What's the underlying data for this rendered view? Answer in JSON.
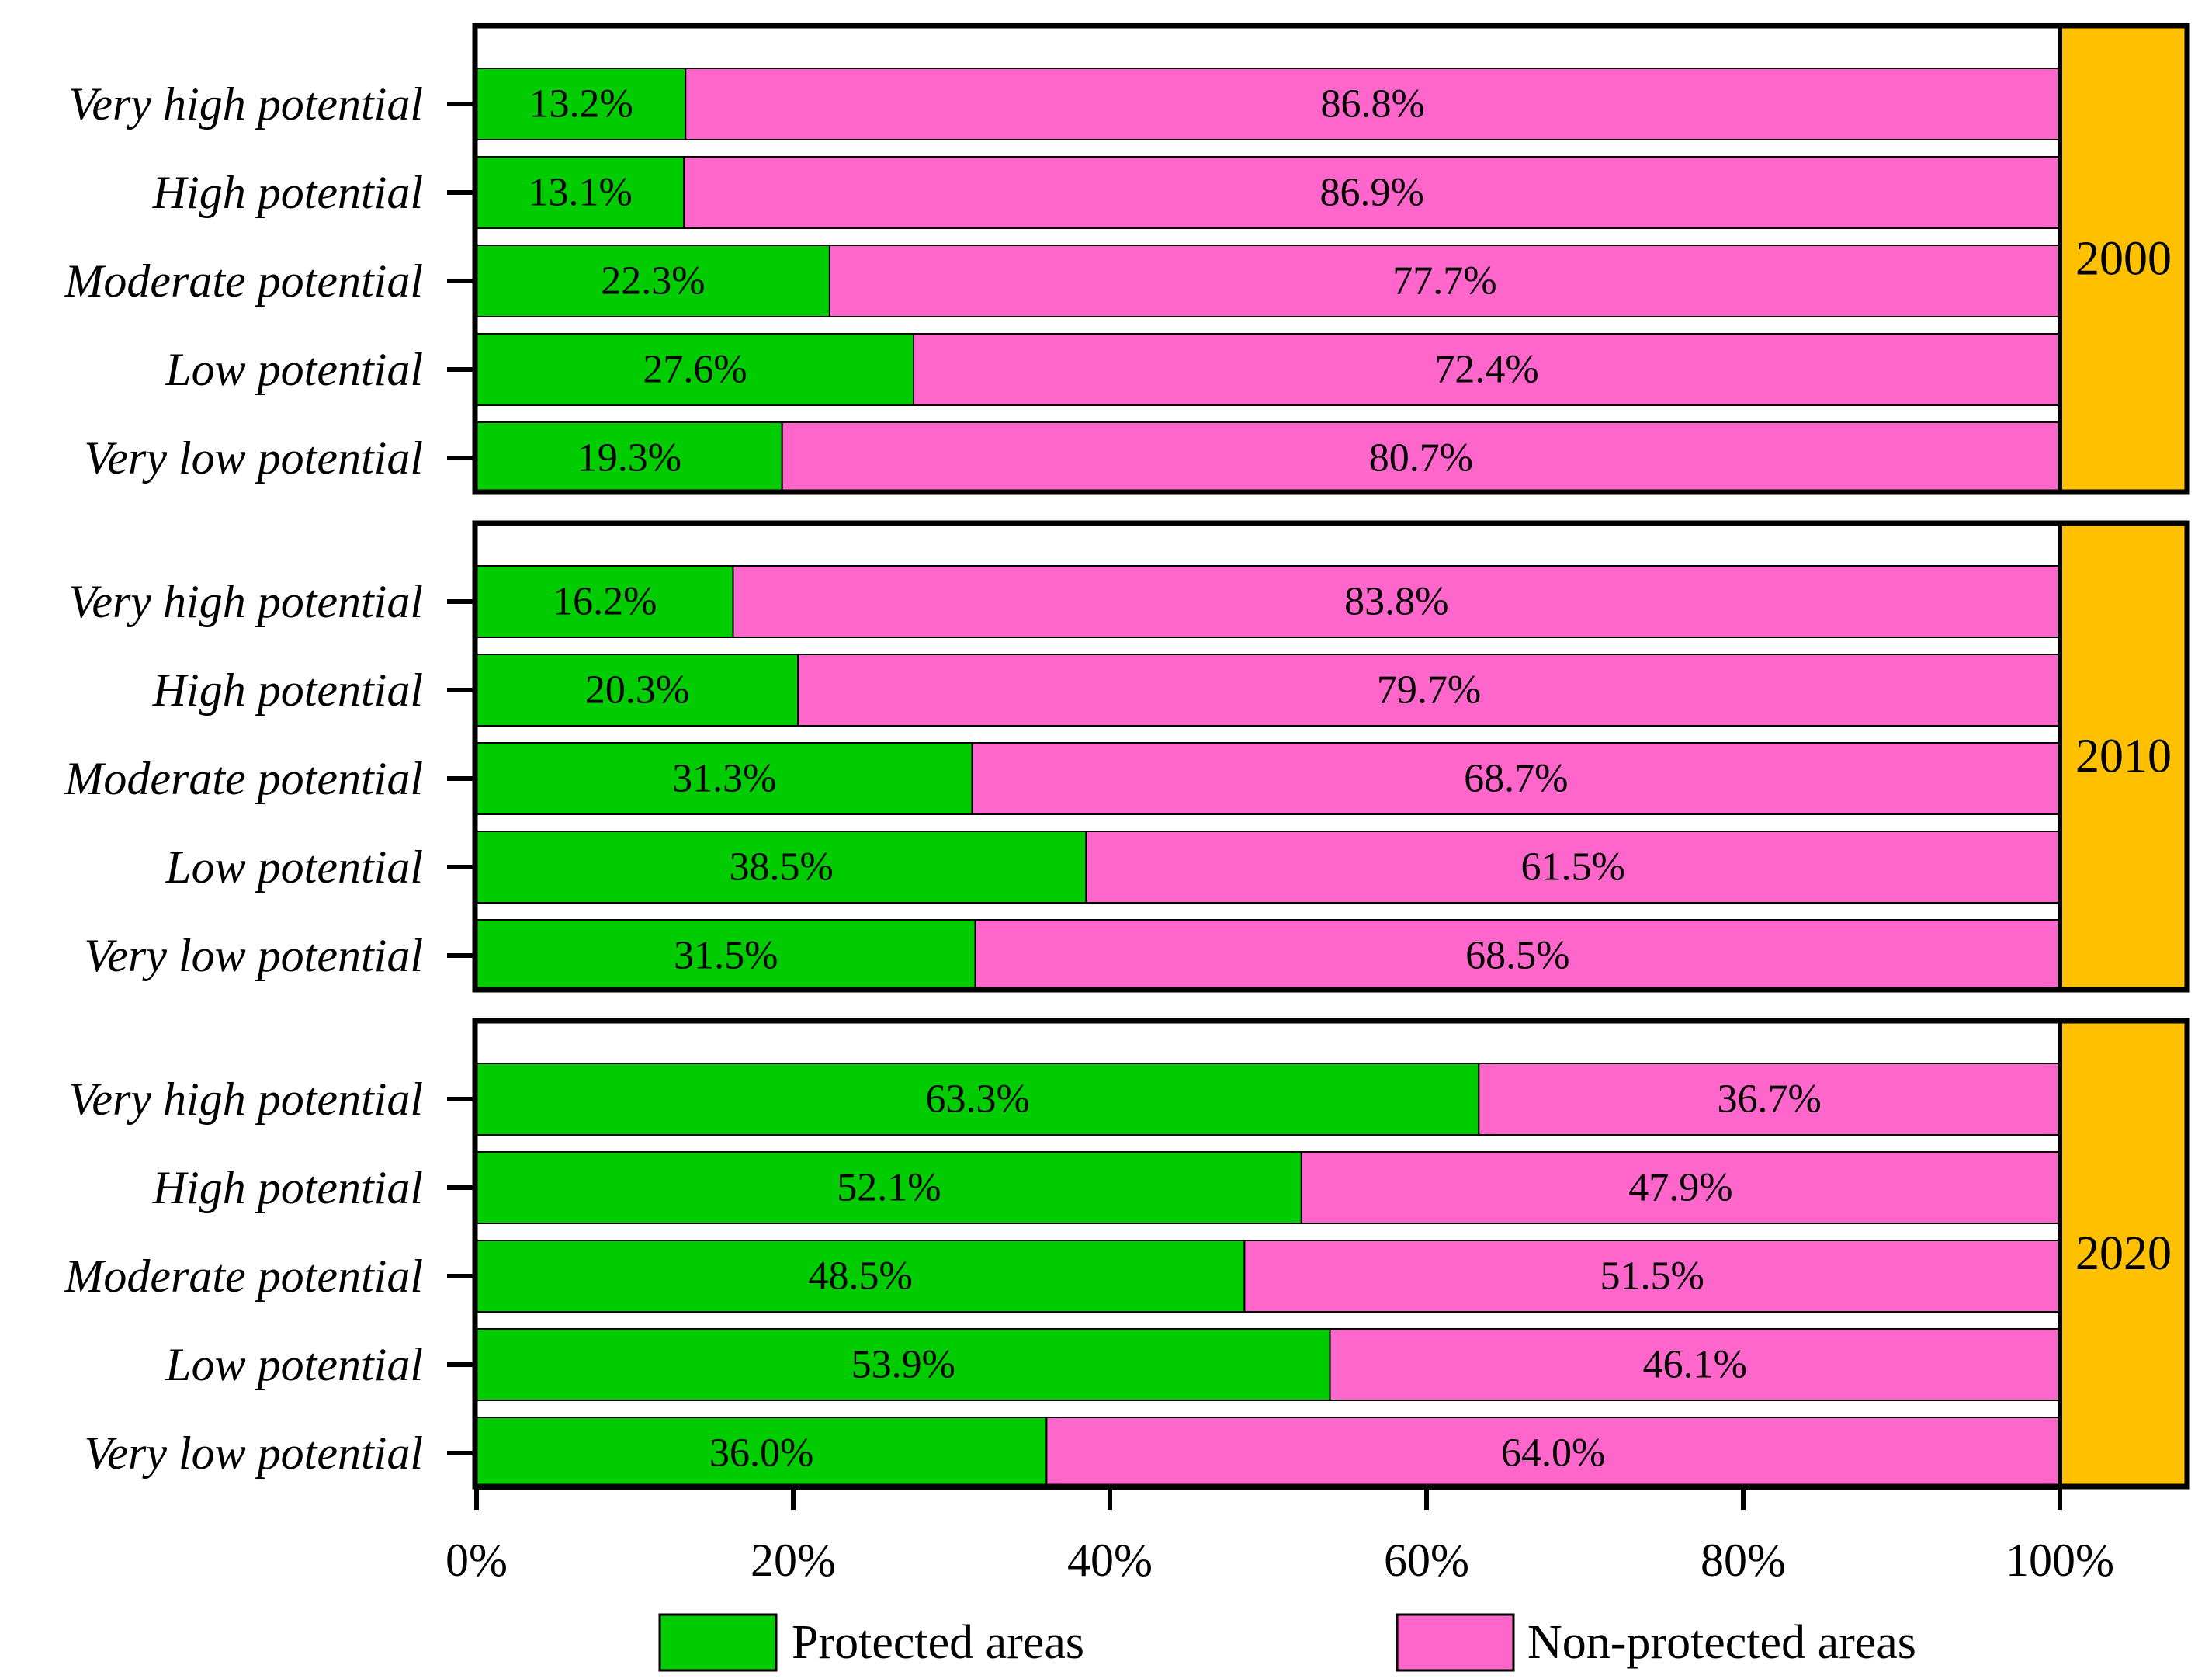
{
  "chart_data": {
    "type": "bar",
    "orientation": "horizontal",
    "stacked": true,
    "normalized": true,
    "categories": [
      "Very high potential",
      "High potential",
      "Moderate potential",
      "Low potential",
      "Very low potential"
    ],
    "panels": [
      {
        "year": "2000",
        "series": [
          {
            "name": "Protected areas",
            "values": [
              13.2,
              13.1,
              22.3,
              27.6,
              19.3
            ],
            "labels": [
              "13.2%",
              "13.1%",
              "22.3%",
              "27.6%",
              "19.3%"
            ]
          },
          {
            "name": "Non-protected areas",
            "values": [
              86.8,
              86.9,
              77.7,
              72.4,
              80.7
            ],
            "labels": [
              "86.8%",
              "86.9%",
              "77.7%",
              "72.4%",
              "80.7%"
            ]
          }
        ]
      },
      {
        "year": "2010",
        "series": [
          {
            "name": "Protected areas",
            "values": [
              16.2,
              20.3,
              31.3,
              38.5,
              31.5
            ],
            "labels": [
              "16.2%",
              "20.3%",
              "31.3%",
              "38.5%",
              "31.5%"
            ]
          },
          {
            "name": "Non-protected areas",
            "values": [
              83.8,
              79.7,
              68.7,
              61.5,
              68.5
            ],
            "labels": [
              "83.8%",
              "79.7%",
              "68.7%",
              "61.5%",
              "68.5%"
            ]
          }
        ]
      },
      {
        "year": "2020",
        "series": [
          {
            "name": "Protected areas",
            "values": [
              63.3,
              52.1,
              48.5,
              53.9,
              36.0
            ],
            "labels": [
              "63.3%",
              "52.1%",
              "48.5%",
              "53.9%",
              "36.0%"
            ]
          },
          {
            "name": "Non-protected areas",
            "values": [
              36.7,
              47.9,
              51.5,
              46.1,
              64.0
            ],
            "labels": [
              "36.7%",
              "47.9%",
              "51.5%",
              "46.1%",
              "64.0%"
            ]
          }
        ]
      }
    ],
    "x_ticks": [
      "0%",
      "20%",
      "40%",
      "60%",
      "80%",
      "100%"
    ],
    "xlim": [
      0,
      100
    ],
    "legend": {
      "position": "bottom",
      "entries": [
        {
          "label": "Protected areas",
          "color": "#00CC00"
        },
        {
          "label": "Non-protected areas",
          "color": "#FF66CC"
        }
      ]
    },
    "colors": {
      "protected": "#00CC00",
      "non_protected": "#FF66CC",
      "year_box": "#FFC000"
    }
  }
}
